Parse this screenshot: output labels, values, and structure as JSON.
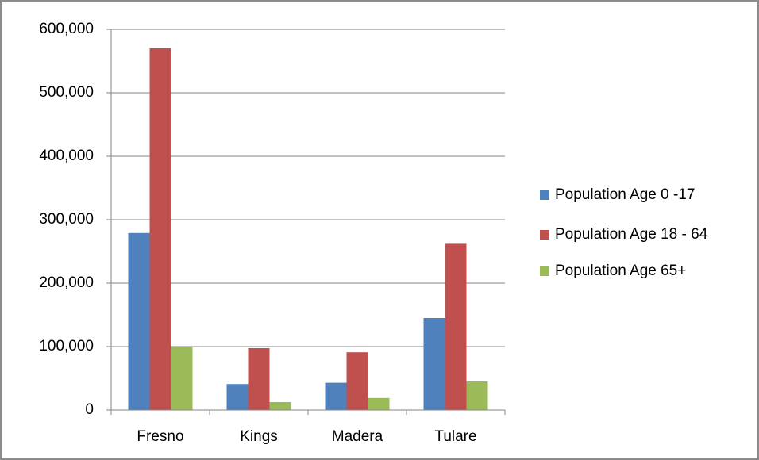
{
  "chart_data": {
    "type": "bar",
    "categories": [
      "Fresno",
      "Kings",
      "Madera",
      "Tulare"
    ],
    "series": [
      {
        "name": "Population Age 0 -17",
        "color": "#4f81bd",
        "values": [
          279000,
          41000,
          43000,
          145000
        ]
      },
      {
        "name": "Population Age 18 - 64",
        "color": "#c0504d",
        "values": [
          570000,
          97500,
          91000,
          262000
        ]
      },
      {
        "name": "Population Age 65+",
        "color": "#9bbb59",
        "values": [
          100000,
          12500,
          19000,
          45000
        ]
      }
    ],
    "ylim": [
      0,
      600000
    ],
    "yticks": [
      0,
      {
        "value": 100000,
        "label": "100,000"
      },
      {
        "value": 200000,
        "label": "200,000"
      },
      {
        "value": 300000,
        "label": "300,000"
      },
      {
        "value": 400000,
        "label": "400,000"
      },
      {
        "value": 500000,
        "label": "500,000"
      },
      {
        "value": 600000,
        "label": "600,000"
      }
    ],
    "grid": true,
    "legend": "right"
  }
}
